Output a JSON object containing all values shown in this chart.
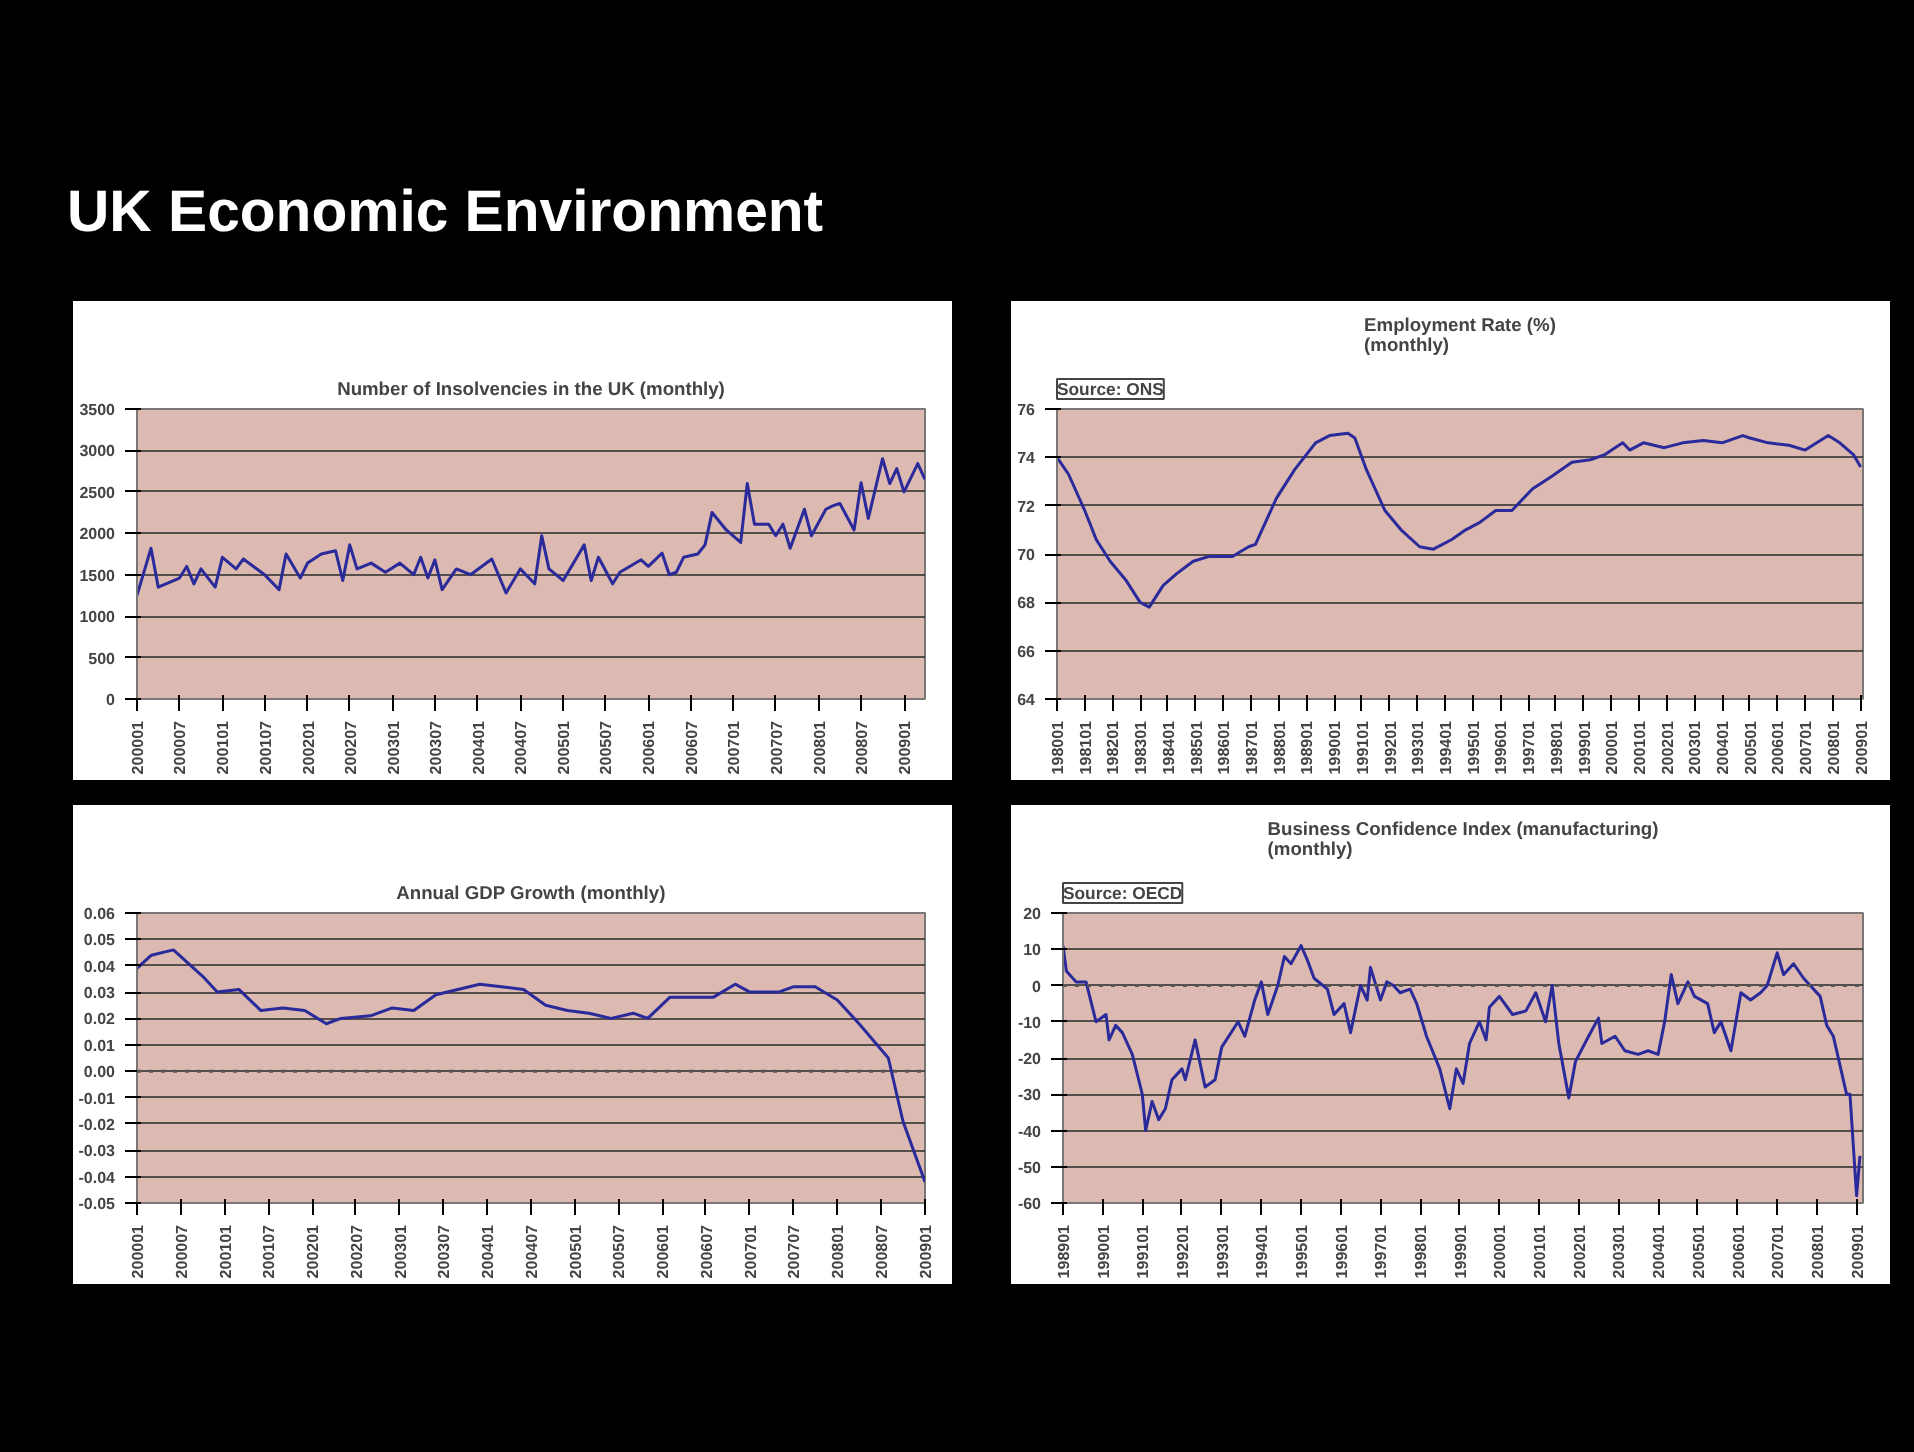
{
  "chart_data": [
    {
      "type": "other",
      "title": "UK Economic Environment"
    },
    {
      "type": "line",
      "title": "Number of Insolvencies in the UK (monthly)",
      "color": "#2a2a9a",
      "grid": "y",
      "x": [
        "2000-01",
        "2000-03",
        "2000-04",
        "2000-07",
        "2000-08",
        "2000-09",
        "2000-10",
        "2000-12",
        "2001-01",
        "2001-03",
        "2001-04",
        "2001-07",
        "2001-09",
        "2001-10",
        "2001-12",
        "2002-01",
        "2002-03",
        "2002-05",
        "2002-06",
        "2002-07",
        "2002-08",
        "2002-10",
        "2002-12",
        "2003-02",
        "2003-04",
        "2003-05",
        "2003-06",
        "2003-07",
        "2003-08",
        "2003-10",
        "2003-12",
        "2004-03",
        "2004-05",
        "2004-07",
        "2004-09",
        "2004-10",
        "2004-11",
        "2005-01",
        "2005-04",
        "2005-05",
        "2005-06",
        "2005-08",
        "2005-09",
        "2005-12",
        "2006-01",
        "2006-03",
        "2006-04",
        "2006-05",
        "2006-06",
        "2006-08",
        "2006-09",
        "2006-10",
        "2006-12",
        "2007-02",
        "2007-03",
        "2007-04",
        "2007-06",
        "2007-07",
        "2007-08",
        "2007-09",
        "2007-11",
        "2007-12",
        "2008-02",
        "2008-03",
        "2008-04",
        "2008-06",
        "2008-07",
        "2008-08",
        "2008-10",
        "2008-11",
        "2008-12",
        "2009-01",
        "2009-03",
        "2009-04"
      ],
      "values": [
        1250,
        1820,
        1350,
        1460,
        1600,
        1390,
        1570,
        1350,
        1710,
        1570,
        1690,
        1500,
        1320,
        1750,
        1460,
        1640,
        1750,
        1790,
        1430,
        1860,
        1570,
        1640,
        1530,
        1640,
        1500,
        1710,
        1460,
        1680,
        1320,
        1570,
        1500,
        1690,
        1280,
        1570,
        1390,
        1970,
        1570,
        1430,
        1860,
        1430,
        1710,
        1390,
        1530,
        1680,
        1600,
        1760,
        1500,
        1530,
        1710,
        1750,
        1860,
        2250,
        2040,
        1890,
        2600,
        2110,
        2110,
        1970,
        2110,
        1820,
        2290,
        1970,
        2290,
        2330,
        2360,
        2040,
        2610,
        2180,
        2900,
        2600,
        2780,
        2500,
        2840,
        2650
      ],
      "xlim": [
        "2000-01",
        "2009-04"
      ],
      "ylim": [
        0,
        3500
      ],
      "yticks": [
        0,
        500,
        1000,
        1500,
        2000,
        2500,
        3000,
        3500
      ],
      "xticks": [
        {
          "value": "2000-01",
          "label": "200001"
        },
        {
          "value": "2000-07",
          "label": "200007"
        },
        {
          "value": "2001-01",
          "label": "200101"
        },
        {
          "value": "2001-07",
          "label": "200107"
        },
        {
          "value": "2002-01",
          "label": "200201"
        },
        {
          "value": "2002-07",
          "label": "200207"
        },
        {
          "value": "2003-01",
          "label": "200301"
        },
        {
          "value": "2003-07",
          "label": "200307"
        },
        {
          "value": "2004-01",
          "label": "200401"
        },
        {
          "value": "2004-07",
          "label": "200407"
        },
        {
          "value": "2005-01",
          "label": "200501"
        },
        {
          "value": "2005-07",
          "label": "200507"
        },
        {
          "value": "2006-01",
          "label": "200601"
        },
        {
          "value": "2006-07",
          "label": "200607"
        },
        {
          "value": "2007-01",
          "label": "200701"
        },
        {
          "value": "2007-07",
          "label": "200707"
        },
        {
          "value": "2008-01",
          "label": "200801"
        },
        {
          "value": "2008-07",
          "label": "200807"
        },
        {
          "value": "2009-01",
          "label": "200901"
        }
      ]
    },
    {
      "type": "line",
      "title": "Employment Rate (%)\n(monthly)",
      "annotations": [
        "Source: ONS"
      ],
      "color": "#2a2a9a",
      "grid": "y",
      "x": [
        "1980-01",
        "1980-06",
        "1981-01",
        "1981-06",
        "1981-12",
        "1982-07",
        "1983-01",
        "1983-05",
        "1983-11",
        "1984-05",
        "1984-12",
        "1985-07",
        "1986-05",
        "1986-12",
        "1987-03",
        "1987-12",
        "1988-08",
        "1989-05",
        "1989-11",
        "1990-07",
        "1990-10",
        "1991-03",
        "1991-11",
        "1992-06",
        "1993-02",
        "1993-08",
        "1994-04",
        "1994-10",
        "1995-04",
        "1995-11",
        "1996-06",
        "1997-03",
        "1997-11",
        "1998-08",
        "1999-04",
        "1999-10",
        "2000-06",
        "2000-09",
        "2001-03",
        "2001-12",
        "2002-08",
        "2003-05",
        "2004-01",
        "2004-10",
        "2005-01",
        "2005-09",
        "2006-06",
        "2007-01",
        "2007-11",
        "2008-04",
        "2008-10",
        "2009-01"
      ],
      "values": [
        74.0,
        73.3,
        71.8,
        70.6,
        69.7,
        68.9,
        68.0,
        67.8,
        68.7,
        69.2,
        69.7,
        69.9,
        69.9,
        70.3,
        70.4,
        72.3,
        73.5,
        74.6,
        74.9,
        75.0,
        74.8,
        73.5,
        71.8,
        71.0,
        70.3,
        70.2,
        70.6,
        71.0,
        71.3,
        71.8,
        71.8,
        72.7,
        73.2,
        73.8,
        73.9,
        74.1,
        74.6,
        74.3,
        74.6,
        74.4,
        74.6,
        74.7,
        74.6,
        74.9,
        74.8,
        74.6,
        74.5,
        74.3,
        74.9,
        74.6,
        74.1,
        73.6
      ],
      "xlim": [
        "1980-01",
        "2009-02"
      ],
      "ylim": [
        64,
        76
      ],
      "yticks": [
        64,
        66,
        68,
        70,
        72,
        74,
        76
      ],
      "xticks": [
        {
          "value": "1980-01",
          "label": "198001"
        },
        {
          "value": "1981-01",
          "label": "198101"
        },
        {
          "value": "1982-01",
          "label": "198201"
        },
        {
          "value": "1983-01",
          "label": "198301"
        },
        {
          "value": "1984-01",
          "label": "198401"
        },
        {
          "value": "1985-01",
          "label": "198501"
        },
        {
          "value": "1986-01",
          "label": "198601"
        },
        {
          "value": "1987-01",
          "label": "198701"
        },
        {
          "value": "1988-01",
          "label": "198801"
        },
        {
          "value": "1989-01",
          "label": "198901"
        },
        {
          "value": "1990-01",
          "label": "199001"
        },
        {
          "value": "1991-01",
          "label": "199101"
        },
        {
          "value": "1992-01",
          "label": "199201"
        },
        {
          "value": "1993-01",
          "label": "199301"
        },
        {
          "value": "1994-01",
          "label": "199401"
        },
        {
          "value": "1995-01",
          "label": "199501"
        },
        {
          "value": "1996-01",
          "label": "199601"
        },
        {
          "value": "1997-01",
          "label": "199701"
        },
        {
          "value": "1998-01",
          "label": "199801"
        },
        {
          "value": "1999-01",
          "label": "199901"
        },
        {
          "value": "2000-01",
          "label": "200001"
        },
        {
          "value": "2001-01",
          "label": "200101"
        },
        {
          "value": "2002-01",
          "label": "200201"
        },
        {
          "value": "2003-01",
          "label": "200301"
        },
        {
          "value": "2004-01",
          "label": "200401"
        },
        {
          "value": "2005-01",
          "label": "200501"
        },
        {
          "value": "2006-01",
          "label": "200601"
        },
        {
          "value": "2007-01",
          "label": "200701"
        },
        {
          "value": "2008-01",
          "label": "200801"
        },
        {
          "value": "2009-01",
          "label": "200901"
        }
      ]
    },
    {
      "type": "line",
      "title": "Annual GDP Growth (monthly)",
      "color": "#2a2a9a",
      "grid": "y",
      "x": [
        "2000-01",
        "2000-03",
        "2000-06",
        "2000-10",
        "2000-12",
        "2001-03",
        "2001-06",
        "2001-09",
        "2001-12",
        "2002-03",
        "2002-05",
        "2002-09",
        "2002-12",
        "2003-03",
        "2003-06",
        "2003-09",
        "2003-12",
        "2004-03",
        "2004-06",
        "2004-09",
        "2004-12",
        "2005-03",
        "2005-06",
        "2005-09",
        "2005-11",
        "2006-02",
        "2006-05",
        "2006-08",
        "2006-11",
        "2007-01",
        "2007-05",
        "2007-07",
        "2007-10",
        "2008-01",
        "2008-04",
        "2008-08",
        "2008-10",
        "2009-01"
      ],
      "values": [
        0.039,
        0.044,
        0.046,
        0.036,
        0.03,
        0.031,
        0.023,
        0.024,
        0.023,
        0.018,
        0.02,
        0.021,
        0.024,
        0.023,
        0.029,
        0.031,
        0.033,
        0.032,
        0.031,
        0.025,
        0.023,
        0.022,
        0.02,
        0.022,
        0.02,
        0.028,
        0.028,
        0.028,
        0.033,
        0.03,
        0.03,
        0.032,
        0.032,
        0.027,
        0.018,
        0.005,
        -0.019,
        -0.042
      ],
      "ref_lines": [
        {
          "axis": "y",
          "value": 0,
          "line_style": "dotted",
          "color": "#555555"
        }
      ],
      "xlim": [
        "2000-01",
        "2009-01"
      ],
      "ylim": [
        -0.05,
        0.06
      ],
      "yticks": [
        0.06,
        0.05,
        0.04,
        0.03,
        0.02,
        0.01,
        {
          "value": 0,
          "label": "0.00"
        },
        -0.01,
        -0.02,
        -0.03,
        -0.04,
        -0.05
      ],
      "xticks": [
        {
          "value": "2000-01",
          "label": "200001"
        },
        {
          "value": "2000-07",
          "label": "200007"
        },
        {
          "value": "2001-01",
          "label": "200101"
        },
        {
          "value": "2001-07",
          "label": "200107"
        },
        {
          "value": "2002-01",
          "label": "200201"
        },
        {
          "value": "2002-07",
          "label": "200207"
        },
        {
          "value": "2003-01",
          "label": "200301"
        },
        {
          "value": "2003-07",
          "label": "200307"
        },
        {
          "value": "2004-01",
          "label": "200401"
        },
        {
          "value": "2004-07",
          "label": "200407"
        },
        {
          "value": "2005-01",
          "label": "200501"
        },
        {
          "value": "2005-07",
          "label": "200507"
        },
        {
          "value": "2006-01",
          "label": "200601"
        },
        {
          "value": "2006-07",
          "label": "200607"
        },
        {
          "value": "2007-01",
          "label": "200701"
        },
        {
          "value": "2007-07",
          "label": "200707"
        },
        {
          "value": "2008-01",
          "label": "200801"
        },
        {
          "value": "2008-07",
          "label": "200807"
        },
        {
          "value": "2009-01",
          "label": "200901"
        }
      ]
    },
    {
      "type": "line",
      "title": "Business Confidence Index (manufacturing)\n(monthly)",
      "annotations": [
        "Source: OECD"
      ],
      "color": "#2a2a9a",
      "grid": "y",
      "x": [
        "1989-01",
        "1989-02",
        "1989-05",
        "1989-08",
        "1989-11",
        "1990-02",
        "1990-03",
        "1990-05",
        "1990-07",
        "1990-10",
        "1991-01",
        "1991-02",
        "1991-04",
        "1991-06",
        "1991-08",
        "1991-10",
        "1992-01",
        "1992-02",
        "1992-05",
        "1992-08",
        "1992-11",
        "1993-01",
        "1993-06",
        "1993-08",
        "1993-11",
        "1994-01",
        "1994-03",
        "1994-06",
        "1994-08",
        "1994-10",
        "1995-01",
        "1995-03",
        "1995-05",
        "1995-09",
        "1995-11",
        "1996-02",
        "1996-04",
        "1996-07",
        "1996-09",
        "1996-10",
        "1997-01",
        "1997-03",
        "1997-05",
        "1997-07",
        "1997-10",
        "1997-12",
        "1998-03",
        "1998-07",
        "1998-10",
        "1998-12",
        "1999-02",
        "1999-04",
        "1999-07",
        "1999-09",
        "1999-10",
        "2000-01",
        "2000-05",
        "2000-09",
        "2000-12",
        "2001-03",
        "2001-05",
        "2001-07",
        "2001-10",
        "2001-12",
        "2002-04",
        "2002-07",
        "2002-08",
        "2002-12",
        "2003-03",
        "2003-07",
        "2003-10",
        "2004-01",
        "2004-03",
        "2004-05",
        "2004-07",
        "2004-10",
        "2004-12",
        "2005-04",
        "2005-06",
        "2005-08",
        "2005-11",
        "2006-02",
        "2006-05",
        "2006-08",
        "2006-10",
        "2007-01",
        "2007-03",
        "2007-06",
        "2007-09",
        "2007-11",
        "2008-02",
        "2008-04",
        "2008-06",
        "2008-10",
        "2008-11",
        "2009-01",
        "2009-02"
      ],
      "values": [
        11,
        4,
        1,
        1,
        -10,
        -8,
        -15,
        -11,
        -13,
        -19,
        -30,
        -40,
        -32,
        -37,
        -34,
        -26,
        -23,
        -26,
        -15,
        -28,
        -26,
        -17,
        -10,
        -14,
        -4,
        1,
        -8,
        0,
        8,
        6,
        11,
        7,
        2,
        -1,
        -8,
        -5,
        -13,
        0,
        -4,
        5,
        -4,
        1,
        0,
        -2,
        -1,
        -5,
        -14,
        -23,
        -34,
        -23,
        -27,
        -16,
        -10,
        -15,
        -6,
        -3,
        -8,
        -7,
        -2,
        -10,
        0,
        -16,
        -31,
        -21,
        -14,
        -9,
        -16,
        -14,
        -18,
        -19,
        -18,
        -19,
        -10,
        3,
        -5,
        1,
        -3,
        -5,
        -13,
        -10,
        -18,
        -2,
        -4,
        -2,
        0,
        9,
        3,
        6,
        2,
        0,
        -3,
        -11,
        -14,
        -30,
        -30,
        -58,
        -47
      ],
      "ref_lines": [
        {
          "axis": "y",
          "value": 0,
          "line_style": "dotted",
          "color": "#555555"
        }
      ],
      "xlim": [
        "1989-01",
        "2009-03"
      ],
      "ylim": [
        -60,
        20
      ],
      "yticks": [
        -60,
        -50,
        -40,
        -30,
        -20,
        -10,
        0,
        10,
        20
      ],
      "xticks": [
        {
          "value": "1989-01",
          "label": "198901"
        },
        {
          "value": "1990-01",
          "label": "199001"
        },
        {
          "value": "1991-01",
          "label": "199101"
        },
        {
          "value": "1992-01",
          "label": "199201"
        },
        {
          "value": "1993-01",
          "label": "199301"
        },
        {
          "value": "1994-01",
          "label": "199401"
        },
        {
          "value": "1995-01",
          "label": "199501"
        },
        {
          "value": "1996-01",
          "label": "199601"
        },
        {
          "value": "1997-01",
          "label": "199701"
        },
        {
          "value": "1998-01",
          "label": "199801"
        },
        {
          "value": "1999-01",
          "label": "199901"
        },
        {
          "value": "2000-01",
          "label": "200001"
        },
        {
          "value": "2001-01",
          "label": "200101"
        },
        {
          "value": "2002-01",
          "label": "200201"
        },
        {
          "value": "2003-01",
          "label": "200301"
        },
        {
          "value": "2004-01",
          "label": "200401"
        },
        {
          "value": "2005-01",
          "label": "200501"
        },
        {
          "value": "2006-01",
          "label": "200601"
        },
        {
          "value": "2007-01",
          "label": "200701"
        },
        {
          "value": "2008-01",
          "label": "200801"
        },
        {
          "value": "2009-01",
          "label": "200901"
        }
      ]
    }
  ]
}
